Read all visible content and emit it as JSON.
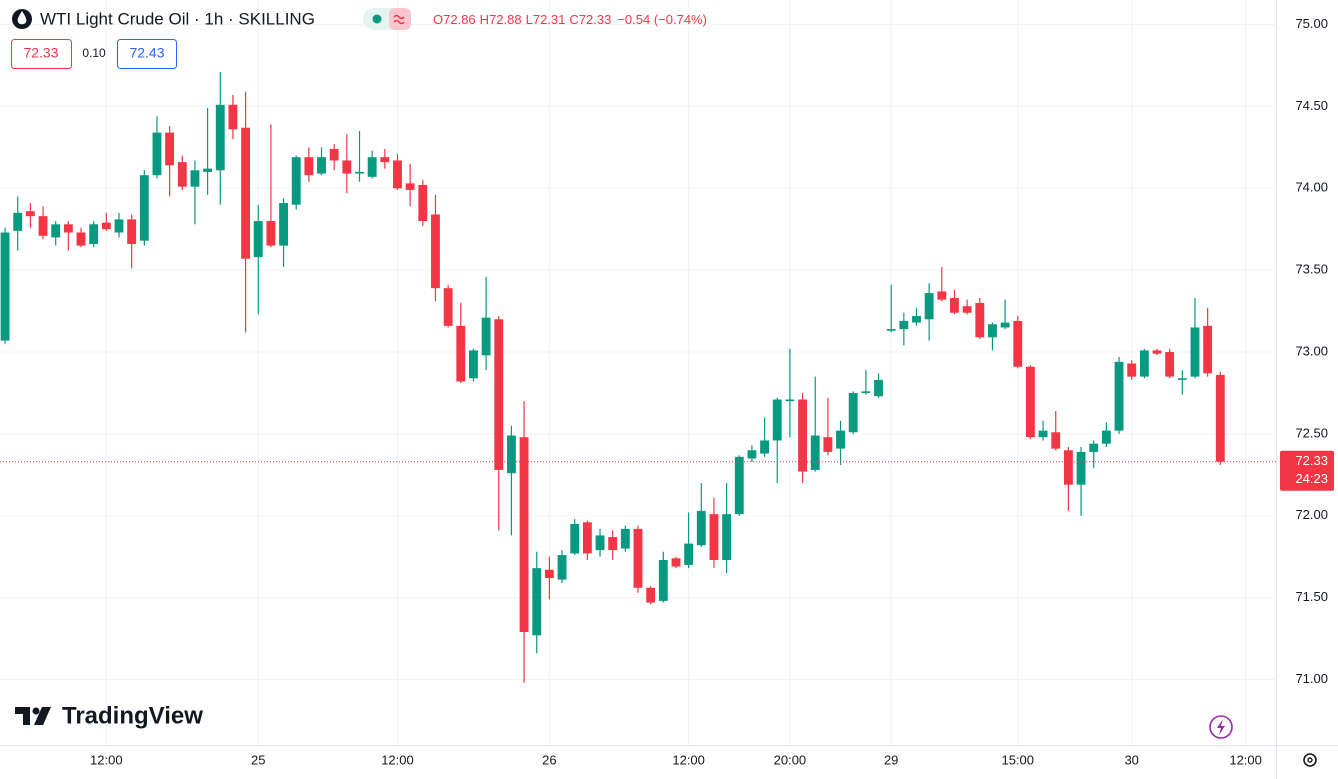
{
  "header": {
    "symbol": "WTI Light Crude Oil · 1h · SKILLING",
    "ohlc": [
      {
        "key": "O",
        "value": 72.86
      },
      {
        "key": "H",
        "value": 72.88
      },
      {
        "key": "L",
        "value": 72.31
      },
      {
        "key": "C",
        "value": 72.33
      }
    ],
    "change": "−0.54 (−0.74%)",
    "sell": 72.33,
    "spread": {
      "value": 0.1,
      "label": "0.10"
    },
    "buy": 72.43,
    "logo": "TradingView"
  },
  "chart_data": {
    "type": "candlestick",
    "up_color": "#089981",
    "down_color": "#f23645",
    "open": [
      73.07,
      73.74,
      73.86,
      73.83,
      73.7,
      73.78,
      73.73,
      73.66,
      73.79,
      73.73,
      73.81,
      73.68,
      74.08,
      74.34,
      74.16,
      74.01,
      74.1,
      74.11,
      74.51,
      74.37,
      73.58,
      73.8,
      73.65,
      73.9,
      74.19,
      74.09,
      74.24,
      74.17,
      74.09,
      74.07,
      74.19,
      74.17,
      74.03,
      74.02,
      73.84,
      73.39,
      73.16,
      72.84,
      72.98,
      73.2,
      72.26,
      72.48,
      71.27,
      71.67,
      71.61,
      71.77,
      71.96,
      71.79,
      71.87,
      71.8,
      71.92,
      71.56,
      71.48,
      71.74,
      71.7,
      71.82,
      72.01,
      71.73,
      72.01,
      72.35,
      72.38,
      72.46,
      72.7,
      72.71,
      72.28,
      72.48,
      72.41,
      72.51,
      72.75,
      72.73,
      73.13,
      73.14,
      73.18,
      73.2,
      73.37,
      73.33,
      73.28,
      73.3,
      73.09,
      73.15,
      73.19,
      72.91,
      72.48,
      72.51,
      72.4,
      72.19,
      72.39,
      72.44,
      72.52,
      72.93,
      72.85,
      73.01,
      73.0,
      72.83,
      72.85,
      73.16,
      72.86
    ],
    "high": [
      73.76,
      73.95,
      73.91,
      73.89,
      73.8,
      73.8,
      73.76,
      73.8,
      73.85,
      73.85,
      73.84,
      74.11,
      74.44,
      74.38,
      74.2,
      74.17,
      74.49,
      74.71,
      74.57,
      74.59,
      73.9,
      74.39,
      73.94,
      74.2,
      74.25,
      74.25,
      74.27,
      74.33,
      74.35,
      74.23,
      74.24,
      74.21,
      74.15,
      74.05,
      73.96,
      73.41,
      73.3,
      73.02,
      73.46,
      73.22,
      72.55,
      72.7,
      71.78,
      71.75,
      71.79,
      71.98,
      71.97,
      71.92,
      71.91,
      71.94,
      71.94,
      71.57,
      71.78,
      71.75,
      72.02,
      72.2,
      72.11,
      72.2,
      72.37,
      72.43,
      72.6,
      72.72,
      73.02,
      72.75,
      72.85,
      72.72,
      72.58,
      72.76,
      72.89,
      72.87,
      73.41,
      73.24,
      73.27,
      73.42,
      73.52,
      73.38,
      73.32,
      73.33,
      73.18,
      73.32,
      73.22,
      72.92,
      72.58,
      72.64,
      72.42,
      72.42,
      72.46,
      72.57,
      72.97,
      72.95,
      73.02,
      73.02,
      73.02,
      72.89,
      73.33,
      73.27,
      72.88
    ],
    "low": [
      73.05,
      73.62,
      73.76,
      73.69,
      73.65,
      73.62,
      73.64,
      73.64,
      73.74,
      73.7,
      73.51,
      73.65,
      74.06,
      73.95,
      73.99,
      73.78,
      73.96,
      73.9,
      74.3,
      73.12,
      73.23,
      73.64,
      73.52,
      73.87,
      74.04,
      74.08,
      74.11,
      73.97,
      74.04,
      74.06,
      74.12,
      73.99,
      73.89,
      73.77,
      73.31,
      73.15,
      72.81,
      72.82,
      72.89,
      71.91,
      71.88,
      70.98,
      71.16,
      71.49,
      71.59,
      71.76,
      71.73,
      71.75,
      71.73,
      71.78,
      71.53,
      71.46,
      71.47,
      71.68,
      71.68,
      71.81,
      71.68,
      71.65,
      72.0,
      72.33,
      72.36,
      72.2,
      72.48,
      72.2,
      72.27,
      72.37,
      72.31,
      72.5,
      72.74,
      72.72,
      73.12,
      73.04,
      73.16,
      73.07,
      73.31,
      73.23,
      73.23,
      73.08,
      73.01,
      73.14,
      72.9,
      72.47,
      72.46,
      72.4,
      72.03,
      72.0,
      72.29,
      72.42,
      72.5,
      72.83,
      72.84,
      72.98,
      72.84,
      72.74,
      72.84,
      72.85,
      72.31
    ],
    "close": [
      73.73,
      73.85,
      73.83,
      73.71,
      73.78,
      73.73,
      73.65,
      73.78,
      73.75,
      73.81,
      73.66,
      74.08,
      74.34,
      74.14,
      74.01,
      74.11,
      74.12,
      74.51,
      74.36,
      73.57,
      73.8,
      73.65,
      73.91,
      74.19,
      74.08,
      74.19,
      74.17,
      74.09,
      74.1,
      74.19,
      74.16,
      74.0,
      73.99,
      73.8,
      73.39,
      73.16,
      72.82,
      73.01,
      73.21,
      72.28,
      72.49,
      71.29,
      71.68,
      71.62,
      71.76,
      71.95,
      71.77,
      71.88,
      71.79,
      71.92,
      71.56,
      71.47,
      71.73,
      71.69,
      71.83,
      72.03,
      71.73,
      72.01,
      72.36,
      72.4,
      72.46,
      72.71,
      72.71,
      72.27,
      72.49,
      72.39,
      72.52,
      72.75,
      72.76,
      72.83,
      73.14,
      73.19,
      73.22,
      73.36,
      73.32,
      73.24,
      73.24,
      73.09,
      73.17,
      73.18,
      72.91,
      72.48,
      72.52,
      72.41,
      72.19,
      72.39,
      72.44,
      72.52,
      72.94,
      72.85,
      73.01,
      72.99,
      72.85,
      72.84,
      73.15,
      72.87,
      72.33
    ],
    "xlim": [
      -0.4,
      100.4
    ],
    "xticks": [
      {
        "value": 8,
        "label": "12:00"
      },
      {
        "value": 20,
        "label": "25"
      },
      {
        "value": 31,
        "label": "12:00"
      },
      {
        "value": 43,
        "label": "26"
      },
      {
        "value": 54,
        "label": "12:00"
      },
      {
        "value": 62,
        "label": "20:00"
      },
      {
        "value": 70,
        "label": "29"
      },
      {
        "value": 80,
        "label": "15:00"
      },
      {
        "value": 89,
        "label": "30"
      },
      {
        "value": 98,
        "label": "12:00"
      }
    ],
    "ylim": [
      70.6,
      75.15
    ],
    "yticks": [
      {
        "value": 71,
        "label": "71.00"
      },
      {
        "value": 71.5,
        "label": "71.50"
      },
      {
        "value": 72,
        "label": "72.00"
      },
      {
        "value": 72.5,
        "label": "72.50"
      },
      {
        "value": 73,
        "label": "73.00"
      },
      {
        "value": 73.5,
        "label": "73.50"
      },
      {
        "value": 74,
        "label": "74.00"
      },
      {
        "value": 74.5,
        "label": "74.50"
      },
      {
        "value": 75,
        "label": "75.00"
      }
    ],
    "grid": true,
    "last_price": 72.33,
    "countdown": "24:23"
  }
}
